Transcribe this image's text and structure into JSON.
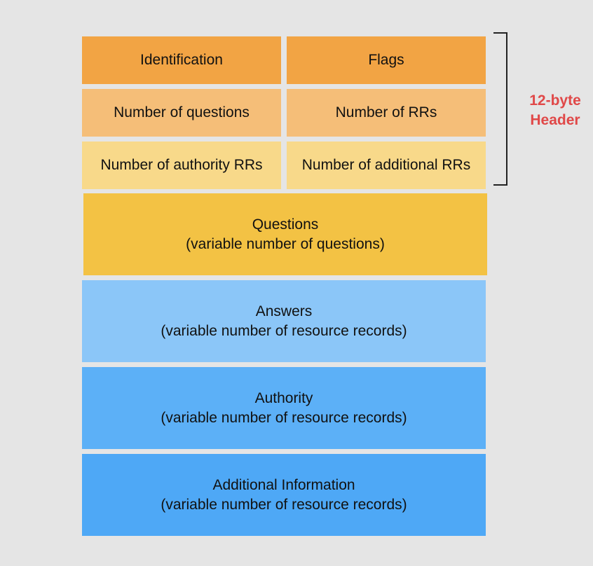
{
  "header": {
    "row1": {
      "left": "Identification",
      "right": "Flags",
      "color": "#f2a444"
    },
    "row2": {
      "left": "Number of questions",
      "right": "Number of RRs",
      "color": "#f5be78"
    },
    "row3": {
      "left": "Number of authority RRs",
      "right": "Number of additional RRs",
      "color": "#f8d98a"
    },
    "bracket_label": [
      "12-byte",
      "Header"
    ],
    "bracket_label_color": "#e04848"
  },
  "sections": [
    {
      "title": "Questions",
      "subtitle": "(variable number of questions)",
      "color": "#f3c244"
    },
    {
      "title": "Answers",
      "subtitle": "(variable number of resource records)",
      "color": "#8bc6f8"
    },
    {
      "title": "Authority",
      "subtitle": "(variable number of resource records)",
      "color": "#5cb0f7"
    },
    {
      "title": "Additional Information",
      "subtitle": "(variable number of resource records)",
      "color": "#4ea8f6"
    }
  ]
}
